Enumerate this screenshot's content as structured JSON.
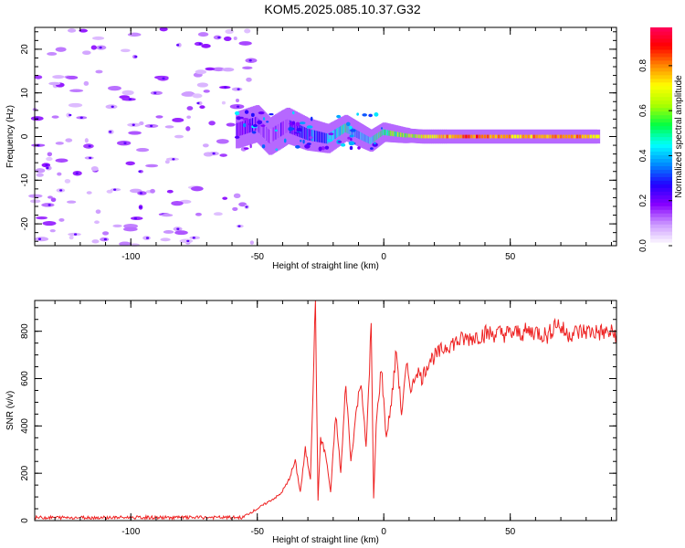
{
  "title": "KOM5.2025.085.10.37.G32",
  "chart_data": [
    {
      "type": "heatmap",
      "xlabel": "Height of straight line (km)",
      "ylabel": "Frequency (Hz)",
      "xlim": [
        -138,
        92
      ],
      "ylim": [
        -25,
        25
      ],
      "xticks": [
        -100,
        -50,
        0,
        50
      ],
      "yticks": [
        -20,
        -10,
        0,
        10,
        20
      ],
      "colorbar": {
        "label": "Normalized spectral amplitude",
        "range": [
          0,
          0.97
        ],
        "ticks": [
          0.0,
          0.2,
          0.4,
          0.6,
          0.8
        ],
        "colors": [
          "#ffffff",
          "#cc99ff",
          "#8800ff",
          "#2200ff",
          "#0088ff",
          "#00ffff",
          "#00ff44",
          "#aaff00",
          "#ffff00",
          "#ff8800",
          "#ff0000",
          "#ff0066"
        ]
      },
      "features": {
        "noise_region_x": [
          -138,
          -52
        ],
        "noise_region_y": [
          -25,
          25
        ],
        "signal_band": [
          {
            "x": -58,
            "y": 1.5,
            "amp": 0.15
          },
          {
            "x": -50,
            "y": 3.0,
            "amp": 0.2
          },
          {
            "x": -45,
            "y": 0.0,
            "amp": 0.15
          },
          {
            "x": -38,
            "y": 2.5,
            "amp": 0.2
          },
          {
            "x": -30,
            "y": 0.5,
            "amp": 0.3
          },
          {
            "x": -22,
            "y": -0.5,
            "amp": 0.35
          },
          {
            "x": -15,
            "y": 2.0,
            "amp": 0.5
          },
          {
            "x": -10,
            "y": 0.5,
            "amp": 0.35
          },
          {
            "x": -5,
            "y": -1.0,
            "amp": 0.45
          },
          {
            "x": 0,
            "y": 1.0,
            "amp": 0.55
          },
          {
            "x": 8,
            "y": 0.3,
            "amp": 0.6
          },
          {
            "x": 15,
            "y": 0.0,
            "amp": 0.7
          },
          {
            "x": 25,
            "y": 0.0,
            "amp": 0.8
          },
          {
            "x": 40,
            "y": 0.0,
            "amp": 0.85
          },
          {
            "x": 55,
            "y": 0.0,
            "amp": 0.75
          },
          {
            "x": 70,
            "y": 0.0,
            "amp": 0.85
          },
          {
            "x": 85,
            "y": 0.0,
            "amp": 0.7
          }
        ]
      }
    },
    {
      "type": "line",
      "xlabel": "Height of straight line (km)",
      "ylabel": "SNR (v/v)",
      "xlim": [
        -138,
        92
      ],
      "ylim": [
        0,
        930
      ],
      "xticks": [
        -100,
        -50,
        0,
        50
      ],
      "yticks": [
        0,
        200,
        400,
        600,
        800
      ],
      "color": "#ee2222",
      "x": [
        -138,
        -120,
        -100,
        -80,
        -60,
        -55,
        -50,
        -47,
        -44,
        -41,
        -38,
        -35,
        -33,
        -31,
        -29,
        -27,
        -26,
        -25,
        -23,
        -21,
        -19,
        -17,
        -15,
        -13,
        -11,
        -9,
        -7,
        -5,
        -4,
        -3,
        -1,
        1,
        3,
        5,
        7,
        9,
        11,
        13,
        15,
        18,
        21,
        25,
        30,
        40,
        50,
        60,
        65,
        68,
        72,
        80,
        92
      ],
      "y": [
        15,
        12,
        12,
        14,
        12,
        20,
        50,
        70,
        90,
        110,
        160,
        250,
        120,
        300,
        180,
        930,
        80,
        350,
        280,
        120,
        450,
        200,
        580,
        250,
        450,
        600,
        300,
        820,
        90,
        400,
        650,
        350,
        500,
        720,
        450,
        650,
        550,
        640,
        600,
        680,
        700,
        740,
        760,
        790,
        790,
        800,
        780,
        840,
        790,
        800,
        790
      ]
    }
  ]
}
